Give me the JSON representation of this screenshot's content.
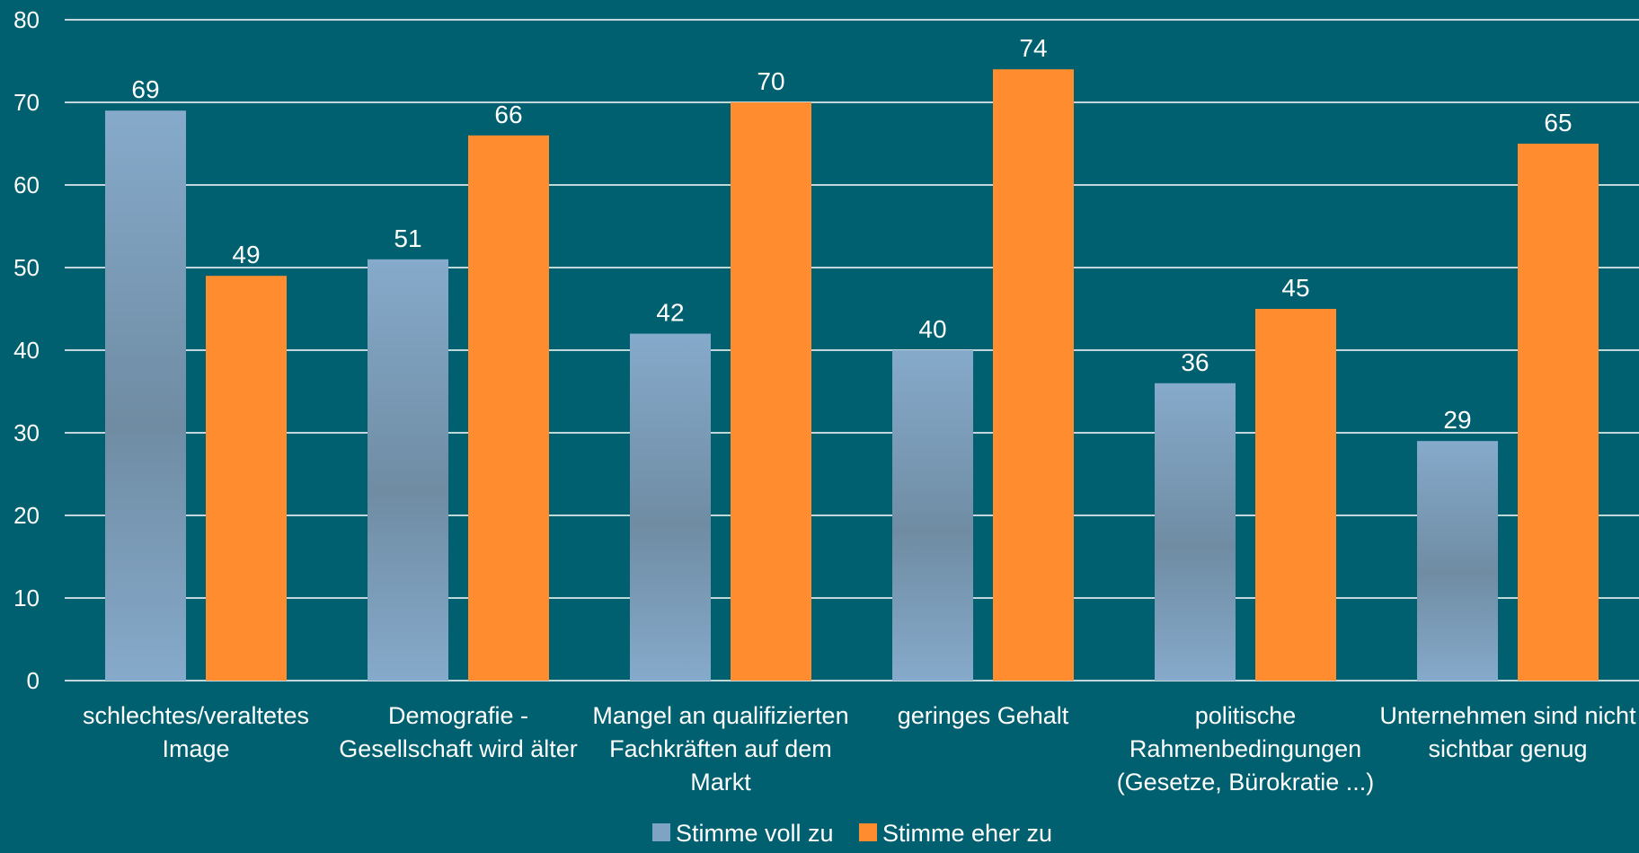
{
  "chart_data": {
    "type": "bar",
    "categories": [
      [
        "schlechtes/veraltetes",
        "Image"
      ],
      [
        "Demografie -",
        "Gesellschaft wird älter"
      ],
      [
        "Mangel an qualifizierten",
        "Fachkräften auf dem",
        "Markt"
      ],
      [
        "geringes Gehalt"
      ],
      [
        "politische",
        "Rahmenbedingungen",
        "(Gesetze, Bürokratie ...)"
      ],
      [
        "Unternehmen sind nicht",
        "sichtbar genug"
      ]
    ],
    "series": [
      {
        "name": "Stimme voll zu",
        "color": "#7fa3c2",
        "values": [
          69,
          51,
          42,
          40,
          36,
          29
        ]
      },
      {
        "name": "Stimme eher zu",
        "color": "#ff8c2e",
        "values": [
          49,
          66,
          70,
          74,
          45,
          65
        ]
      }
    ],
    "ylim": [
      0,
      80
    ],
    "yticks": [
      0,
      10,
      20,
      30,
      40,
      50,
      60,
      70,
      80
    ],
    "grid": true,
    "legend_position": "bottom-center",
    "colors": {
      "background": "#006070",
      "grid": "#ffffff",
      "text": "#ffffff"
    }
  }
}
